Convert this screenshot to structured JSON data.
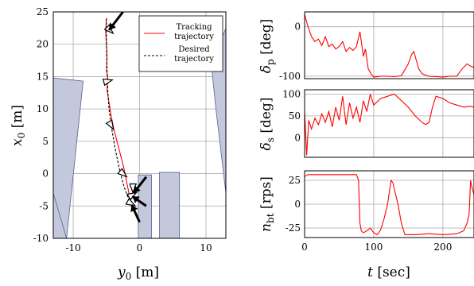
{
  "chart_data": [
    {
      "type": "line",
      "xlabel": "y_0 [m]",
      "ylabel": "x_0 [m]",
      "xlim": [
        -13,
        13
      ],
      "ylim": [
        -10,
        25
      ],
      "xticks": [
        -10,
        0,
        10
      ],
      "yticks": [
        -10,
        -5,
        0,
        5,
        10,
        15,
        20,
        25
      ],
      "grid": true,
      "legend": {
        "placement": "top-right",
        "entries": [
          "Tracking trajectory",
          "Desired trajectory"
        ]
      },
      "series": [
        {
          "name": "Tracking trajectory",
          "color": "#ff0000",
          "style": "solid",
          "x": [
            -5.0,
            -5.1,
            -5.0,
            -4.9,
            -5.0,
            -4.8,
            -4.9,
            -4.6,
            -4.3,
            -3.9,
            -3.4,
            -2.9,
            -2.4,
            -2.0,
            -1.6,
            -1.5
          ],
          "y": [
            24.0,
            22.0,
            20.0,
            18.0,
            16.0,
            15.0,
            13.0,
            11.0,
            9.0,
            7.0,
            5.0,
            3.0,
            1.0,
            -1.0,
            -3.0,
            -4.0
          ]
        },
        {
          "name": "Desired trajectory",
          "color": "#000000",
          "style": "dashed",
          "x": [
            -5.0,
            -5.0,
            -4.9,
            -4.8,
            -4.6,
            -4.2,
            -3.7,
            -3.1,
            -2.5,
            -2.0,
            -1.6
          ],
          "y": [
            24.0,
            20.0,
            16.0,
            13.0,
            10.0,
            7.0,
            4.0,
            1.0,
            -1.5,
            -3.0,
            -4.0
          ]
        }
      ],
      "obstacles": [
        {
          "points": [
            [
              -13,
              14.8
            ],
            [
              -8.5,
              14.3
            ],
            [
              -11,
              -10
            ],
            [
              -13,
              -10
            ]
          ]
        },
        {
          "points": [
            [
              -13,
              -3.0
            ],
            [
              -11,
              -10
            ],
            [
              -13,
              -10
            ]
          ]
        },
        {
          "points": [
            [
              10.8,
              17.0
            ],
            [
              13,
              22.5
            ],
            [
              13,
              -3.0
            ],
            [
              11.5,
              10.0
            ]
          ]
        },
        {
          "points": [
            [
              -0.2,
              -10
            ],
            [
              -0.2,
              -0.2
            ],
            [
              1.8,
              -0.2
            ],
            [
              1.8,
              -10
            ]
          ]
        },
        {
          "points": [
            [
              3.0,
              -10
            ],
            [
              3.0,
              0.2
            ],
            [
              6.0,
              0.2
            ],
            [
              6.0,
              -10
            ]
          ]
        }
      ],
      "arrows": [
        {
          "from": [
            -2.5,
            25
          ],
          "to": [
            -4.6,
            22.2
          ]
        },
        {
          "from": [
            1.0,
            -0.5
          ],
          "to": [
            -0.9,
            -3.0
          ]
        },
        {
          "from": [
            1.0,
            -5.0
          ],
          "to": [
            -1.1,
            -3.5
          ]
        },
        {
          "from": [
            0.0,
            -7.5
          ],
          "to": [
            -1.2,
            -4.8
          ]
        }
      ],
      "markers": [
        {
          "x": -4.5,
          "y": 22.2,
          "rot": 45
        },
        {
          "x": -4.8,
          "y": 14.3,
          "rot": -15
        },
        {
          "x": -4.3,
          "y": 7.5,
          "rot": 60
        },
        {
          "x": -2.5,
          "y": 0.0,
          "rot": 40
        },
        {
          "x": -1.0,
          "y": -2.2,
          "rot": 90
        },
        {
          "x": -1.1,
          "y": -3.3,
          "rot": -30
        },
        {
          "x": -1.3,
          "y": -4.6,
          "rot": 30
        }
      ]
    },
    {
      "type": "line",
      "ylabel": "δ_p [deg]",
      "xlim": [
        0,
        245
      ],
      "ylim": [
        -105,
        30
      ],
      "yticks": [
        -100,
        0
      ],
      "grid": true,
      "series": [
        {
          "color": "#ff0000",
          "x": [
            0,
            5,
            10,
            15,
            20,
            25,
            30,
            35,
            40,
            45,
            50,
            55,
            60,
            65,
            70,
            75,
            80,
            85,
            88,
            92,
            96,
            100,
            110,
            120,
            130,
            140,
            150,
            155,
            158,
            160,
            165,
            170,
            175,
            180,
            190,
            200,
            210,
            220,
            228,
            235,
            240,
            245
          ],
          "y": [
            25,
            0,
            -20,
            -30,
            -25,
            -38,
            -20,
            -40,
            -35,
            -45,
            -40,
            -30,
            -50,
            -42,
            -48,
            -40,
            -10,
            -60,
            -45,
            -85,
            -95,
            -102,
            -100,
            -100,
            -101,
            -99,
            -75,
            -55,
            -50,
            -60,
            -85,
            -95,
            -98,
            -100,
            -101,
            -102,
            -100,
            -100,
            -85,
            -75,
            -80,
            -82
          ]
        }
      ]
    },
    {
      "type": "line",
      "ylabel": "δ_s [deg]",
      "xlim": [
        0,
        245
      ],
      "ylim": [
        -45,
        110
      ],
      "yticks": [
        0,
        50,
        100
      ],
      "grid": true,
      "series": [
        {
          "color": "#ff0000",
          "x": [
            0,
            3,
            6,
            10,
            15,
            20,
            25,
            30,
            35,
            40,
            45,
            50,
            55,
            60,
            65,
            70,
            75,
            80,
            85,
            90,
            95,
            100,
            110,
            120,
            130,
            140,
            150,
            160,
            170,
            175,
            180,
            185,
            190,
            200,
            210,
            220,
            230,
            240,
            245
          ],
          "y": [
            60,
            -40,
            40,
            20,
            45,
            30,
            55,
            35,
            60,
            25,
            70,
            40,
            95,
            30,
            80,
            45,
            70,
            35,
            85,
            60,
            100,
            75,
            90,
            95,
            100,
            85,
            70,
            50,
            35,
            30,
            35,
            70,
            95,
            90,
            80,
            75,
            70,
            72,
            70
          ]
        }
      ]
    },
    {
      "type": "line",
      "xlabel": "t [sec]",
      "ylabel": "n_bt [rps]",
      "xlim": [
        0,
        245
      ],
      "ylim": [
        -35,
        35
      ],
      "xticks": [
        0,
        100,
        200
      ],
      "yticks": [
        -25,
        0,
        25
      ],
      "grid": true,
      "series": [
        {
          "color": "#ff0000",
          "x": [
            0,
            5,
            20,
            40,
            60,
            75,
            78,
            80,
            82,
            85,
            90,
            95,
            100,
            105,
            110,
            115,
            120,
            125,
            128,
            130,
            135,
            140,
            145,
            160,
            180,
            200,
            220,
            230,
            235,
            238,
            240,
            242,
            245
          ],
          "y": [
            29,
            31,
            31,
            31,
            31,
            31,
            25,
            -20,
            -28,
            -30,
            -28,
            -25,
            -30,
            -32,
            -27,
            -15,
            0,
            25,
            22,
            15,
            0,
            -20,
            -32,
            -32,
            -31,
            -32,
            -31,
            -28,
            -20,
            -10,
            25,
            18,
            10
          ]
        }
      ]
    }
  ]
}
